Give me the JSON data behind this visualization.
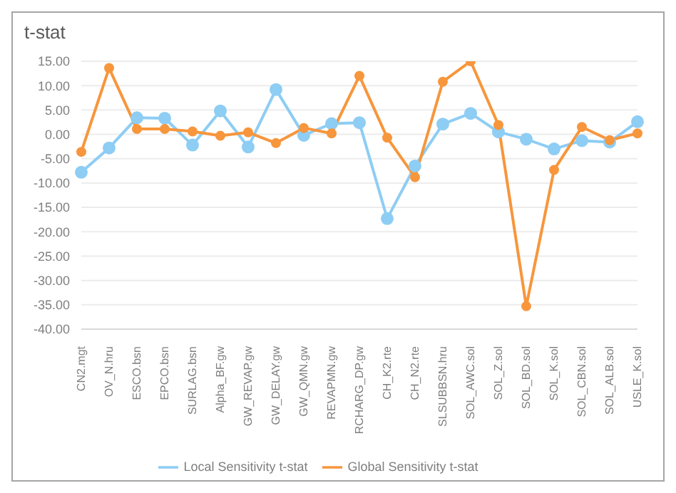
{
  "chart_data": {
    "type": "line",
    "title": "t-stat",
    "categories": [
      "CN2.mgt",
      "OV_N.hru",
      "ESCO.bsn",
      "EPCO.bsn",
      "SURLAG.bsn",
      "Alpha_BF.gw",
      "GW_REVAP.gw",
      "GW_DELAY.gw",
      "GW_QMN.gw",
      "REVAPMN.gw",
      "RCHARG_DP.gw",
      "CH_K2.rte",
      "CH_N2.rte",
      "SLSUBBSN.hru",
      "SOL_AWC.sol",
      "SOL_Z.sol",
      "SOL_BD.sol",
      "SOL_K.sol",
      "SOL_CBN.sol",
      "SOL_ALB.sol",
      "USLE_K.sol"
    ],
    "series": [
      {
        "name": "Local Sensitivity t-stat",
        "color": "#8ecdf4",
        "values": [
          -7.8,
          -2.8,
          3.4,
          3.3,
          -2.2,
          4.8,
          -2.6,
          9.2,
          -0.2,
          2.2,
          2.4,
          -17.3,
          -6.5,
          2.1,
          4.3,
          0.5,
          -1.0,
          -3.0,
          -1.3,
          -1.6,
          2.6
        ]
      },
      {
        "name": "Global Sensitivity t-stat",
        "color": "#f7963c",
        "values": [
          -3.6,
          13.6,
          1.1,
          1.1,
          0.6,
          -0.3,
          0.4,
          -1.8,
          1.3,
          0.2,
          12.0,
          -0.7,
          -8.8,
          10.8,
          15.0,
          1.9,
          -35.3,
          -7.3,
          1.5,
          -1.2,
          0.2
        ]
      }
    ],
    "ylim": [
      -40,
      15
    ],
    "yticks": [
      {
        "value": -40,
        "label": "-40.00"
      },
      {
        "value": -35,
        "label": "-35.00"
      },
      {
        "value": -30,
        "label": "-30.00"
      },
      {
        "value": -25,
        "label": "-25.00"
      },
      {
        "value": -20,
        "label": "-20.00"
      },
      {
        "value": -15,
        "label": "-15.00"
      },
      {
        "value": -10,
        "label": "-10.00"
      },
      {
        "value": -5,
        "label": "-5.00"
      },
      {
        "value": 0,
        "label": "0.00"
      },
      {
        "value": 5,
        "label": "5.00"
      },
      {
        "value": 10,
        "label": "10.00"
      },
      {
        "value": 15,
        "label": "15.00"
      }
    ],
    "grid": "y",
    "legend": "bottom",
    "marker": "circle",
    "line_style": "solid"
  }
}
